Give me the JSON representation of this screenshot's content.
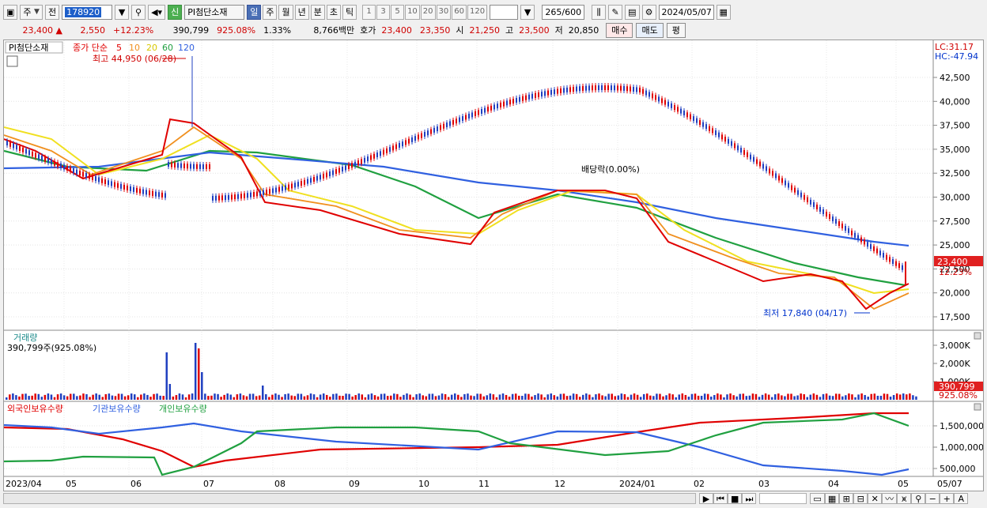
{
  "toolbar": {
    "market_type": "주",
    "scope": "전",
    "code": "178920",
    "badge": "신",
    "name": "PI첨단소재",
    "periods": [
      "일",
      "주",
      "월",
      "년",
      "분",
      "초",
      "틱"
    ],
    "active_period": "일",
    "intervals": [
      "1",
      "3",
      "5",
      "10",
      "20",
      "30",
      "60",
      "120"
    ],
    "count_current": "265",
    "count_total": "/600",
    "date": "2024/05/07"
  },
  "status": {
    "price": "23,400",
    "arrow": "▲",
    "change": "2,550",
    "change_pct": "+12.23%",
    "volume": "390,799",
    "volume_ratio": "925.08%",
    "turnover": "1.33%",
    "amount": "8,766백만",
    "ask_label": "호가",
    "ask": "23,400",
    "bid": "23,350",
    "open_label": "시",
    "open": "21,250",
    "high_label": "고",
    "high": "23,500",
    "low_label": "저",
    "low": "20,850",
    "buy": "매수",
    "sell": "매도",
    "eval": "평"
  },
  "price_panel": {
    "name": "PI첨단소재",
    "legend_label": "종가 단순",
    "ma": [
      "5",
      "10",
      "20",
      "60",
      "120"
    ],
    "ma_colors": [
      "#e00000",
      "#f09020",
      "#f0e020",
      "#20a040",
      "#3060e0"
    ],
    "lc": "LC:31.17",
    "hc": "HC:-47.94",
    "high_note": "최고 44,950 (06/28)",
    "low_note": "최저 17,840 (04/17)",
    "dividend_note": "배당락(0.00%)",
    "last_price": "23,400",
    "last_pct": "12.23%",
    "y_ticks": [
      "42,500",
      "40,000",
      "37,500",
      "35,000",
      "32,500",
      "30,000",
      "27,500",
      "25,000",
      "22,500",
      "20,000",
      "17,500"
    ]
  },
  "volume_panel": {
    "title": "거래량",
    "subtitle": "390,799주(925.08%)",
    "y_ticks": [
      "3,000K",
      "2,000K",
      "1,000K"
    ],
    "last": "390,799",
    "last_pct": "925.08%"
  },
  "holding_panel": {
    "legend": [
      "외국인보유수량",
      "기관보유수량",
      "개인보유수량"
    ],
    "legend_colors": [
      "#e00000",
      "#3060e0",
      "#20a040"
    ],
    "y_ticks": [
      "1,500,000",
      "1,000,000",
      "500,000"
    ]
  },
  "x_axis": {
    "labels": [
      "2023/04",
      "05",
      "06",
      "07",
      "08",
      "09",
      "10",
      "11",
      "12",
      "2024/01",
      "02",
      "03",
      "04",
      "05"
    ],
    "right_label": "05/07"
  }
}
